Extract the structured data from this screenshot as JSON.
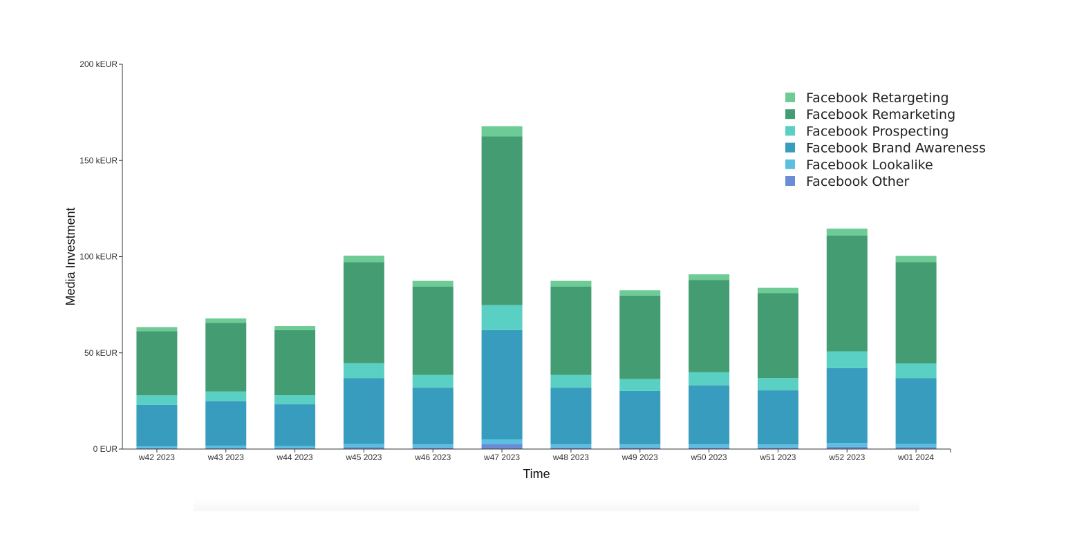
{
  "chart_data": {
    "type": "bar",
    "stacked": true,
    "xlabel": "Time",
    "ylabel": "Media Investment",
    "ylim": [
      0,
      200
    ],
    "yticks": [
      {
        "value": 0,
        "label": "0 EUR"
      },
      {
        "value": 50,
        "label": "50 kEUR"
      },
      {
        "value": 100,
        "label": "100 kEUR"
      },
      {
        "value": 150,
        "label": "150 kEUR"
      },
      {
        "value": 200,
        "label": "200 kEUR"
      }
    ],
    "categories": [
      "w42 2023",
      "w43 2023",
      "w44 2023",
      "w45 2023",
      "w46 2023",
      "w47 2023",
      "w48 2023",
      "w49 2023",
      "w50 2023",
      "w51 2023",
      "w52 2023",
      "w01 2024"
    ],
    "grid": false,
    "legend_position": "top-right",
    "series": [
      {
        "name": "Facebook Other",
        "color": "#6b8bd4",
        "values": [
          0.4,
          0.5,
          0.4,
          0.9,
          0.8,
          2.5,
          0.8,
          0.8,
          0.8,
          0.8,
          1.1,
          0.9
        ]
      },
      {
        "name": "Facebook Lookalike",
        "color": "#5bbfe0",
        "values": [
          1.0,
          1.3,
          1.1,
          1.8,
          1.7,
          2.5,
          1.7,
          1.6,
          1.7,
          1.6,
          2.1,
          1.8
        ]
      },
      {
        "name": "Facebook Brand Awareness",
        "color": "#379cbd",
        "values": [
          21.6,
          23.0,
          21.8,
          34.2,
          29.4,
          56.8,
          29.4,
          27.8,
          30.6,
          28.1,
          38.9,
          34.2
        ]
      },
      {
        "name": "Facebook Prospecting",
        "color": "#5ad0c4",
        "values": [
          4.9,
          5.1,
          4.7,
          7.7,
          6.6,
          13.0,
          6.6,
          6.2,
          6.8,
          6.4,
          8.7,
          7.6
        ]
      },
      {
        "name": "Facebook Remarketing",
        "color": "#449d72",
        "values": [
          33.4,
          35.7,
          33.8,
          52.6,
          46.0,
          87.7,
          46.0,
          43.4,
          47.9,
          44.2,
          60.2,
          52.7
        ]
      },
      {
        "name": "Facebook Retargeting",
        "color": "#6dcb95",
        "values": [
          2.1,
          2.3,
          2.1,
          3.3,
          2.9,
          5.3,
          2.9,
          2.7,
          3.0,
          2.7,
          3.6,
          3.2
        ]
      }
    ],
    "legend": [
      {
        "name": "Facebook Retargeting",
        "color": "#6dcb95"
      },
      {
        "name": "Facebook Remarketing",
        "color": "#449d72"
      },
      {
        "name": "Facebook Prospecting",
        "color": "#5ad0c4"
      },
      {
        "name": "Facebook Brand Awareness",
        "color": "#379cbd"
      },
      {
        "name": "Facebook Lookalike",
        "color": "#5bbfe0"
      },
      {
        "name": "Facebook Other",
        "color": "#6b8bd4"
      }
    ]
  }
}
